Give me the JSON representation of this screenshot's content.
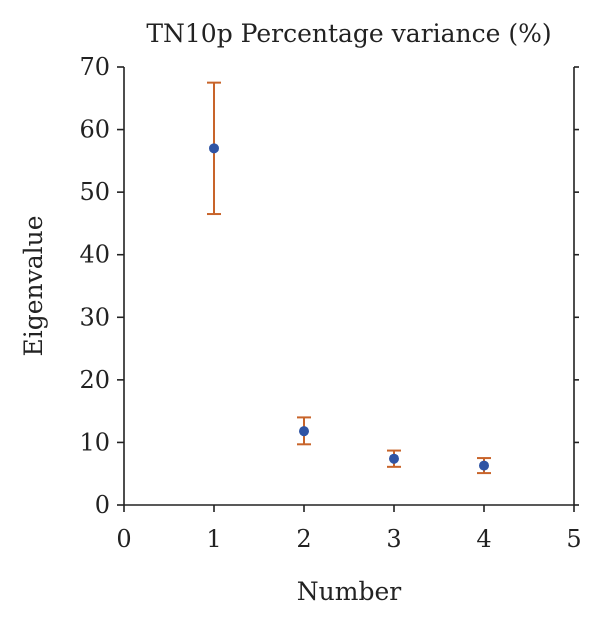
{
  "chart_data": {
    "type": "scatter",
    "title": "TN10p Percentage variance (%)",
    "xlabel": "Number",
    "ylabel": "Eigenvalue",
    "xlim": [
      0,
      5
    ],
    "ylim": [
      0,
      70
    ],
    "xticks": [
      0,
      1,
      2,
      3,
      4,
      5
    ],
    "yticks": [
      0,
      10,
      20,
      30,
      40,
      50,
      60,
      70
    ],
    "grid": false,
    "series": [
      {
        "points": [
          {
            "x": 1,
            "y": 57.0,
            "err_low": 46.5,
            "err_high": 67.5
          },
          {
            "x": 2,
            "y": 11.8,
            "err_low": 9.7,
            "err_high": 14.0
          },
          {
            "x": 3,
            "y": 7.4,
            "err_low": 6.1,
            "err_high": 8.7
          },
          {
            "x": 4,
            "y": 6.3,
            "err_low": 5.1,
            "err_high": 7.5
          }
        ]
      }
    ],
    "colors": {
      "marker": "#2f54a4",
      "errorbar": "#c8642a",
      "axis": "#222222"
    }
  }
}
